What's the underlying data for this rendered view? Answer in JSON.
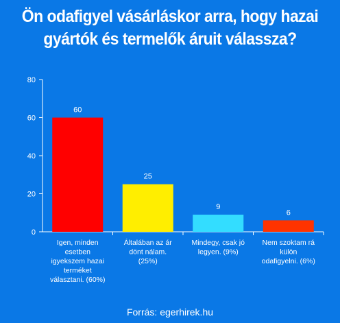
{
  "title": "Ön odafigyel vásárláskor arra, hogy hazai\ngyártók és termelők áruit válassza?",
  "source": "Forrás: egerhirek.hu",
  "colors": {
    "background": "#0a78e6",
    "axis": "#ffffff",
    "grid": "#ffffff"
  },
  "chart_data": {
    "type": "bar",
    "categories": [
      [
        "Igen, minden",
        "esetben",
        "igyekszem hazai",
        "terméket",
        "választani. (60%)"
      ],
      [
        "Általában az ár",
        "dönt nálam.",
        "(25%)"
      ],
      [
        "Mindegy, csak jó",
        "legyen. (9%)"
      ],
      [
        "Nem szoktam rá",
        "külön",
        "odafigyelni. (6%)"
      ]
    ],
    "values": [
      60,
      25,
      9,
      6
    ],
    "bar_colors": [
      "#ff0000",
      "#ffee00",
      "#33ddff",
      "#ff3300"
    ],
    "ylim": [
      0,
      80
    ],
    "yticks": [
      0,
      20,
      40,
      60,
      80
    ],
    "data_labels": true,
    "grid": false,
    "legend": "none"
  }
}
